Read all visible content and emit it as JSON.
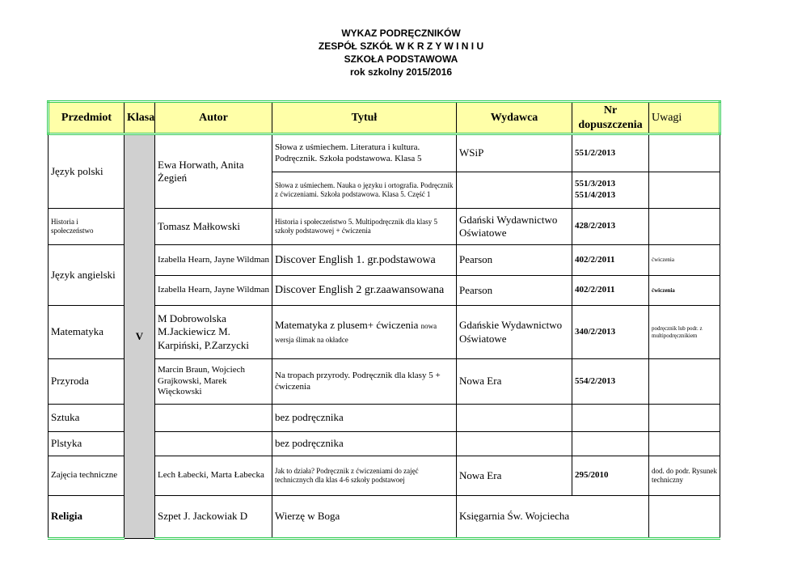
{
  "header": {
    "lines": [
      "WYKAZ PODRĘCZNIKÓW",
      "ZESPÓŁ SZKÓŁ W  K R Z Y W I N I U",
      "SZKOŁA PODSTAWOWA",
      "rok szkolny 2015/2016"
    ]
  },
  "table": {
    "columns": [
      "Przedmiot",
      "Klasa",
      "Autor",
      "Tytuł",
      "Wydawca",
      "Nr dopuszczenia",
      "Uwagi"
    ],
    "klasa": "V",
    "rows": [
      {
        "subject": "Język polski",
        "author": "Ewa Horwath, Anita Żegień",
        "title": "Słowa z uśmiechem. Literatura i kultura. Podręcznik. Szkoła podstawowa. Klasa 5",
        "publisher": "WSiP",
        "number": "551/2/2013"
      },
      {
        "title": "Słowa z uśmiechem. Nauka o języku i ortografia. Podręcznik z ćwiczeniami. Szkoła podstawowa. Klasa 5. Część 1",
        "numbers": [
          "551/3/2013",
          "551/4/2013"
        ]
      },
      {
        "subject": "Historia i społeczeństwo",
        "author": "Tomasz Małkowski",
        "title": "Historia i społeczeństwo 5. Multipodręcznik dla klasy 5 szkoły podstawowej + ćwiczenia",
        "publisher": "Gdański Wydawnictwo Oświatowe",
        "number": "428/2/2013"
      },
      {
        "subject": "Język angielski",
        "author": "Izabella Hearn, Jayne Wildman",
        "title": "Discover English 1. gr.podstawowa",
        "publisher": "Pearson",
        "number": "402/2/2011",
        "notes": "ćwiczenia"
      },
      {
        "author": "Izabella Hearn, Jayne Wildman",
        "title": "Discover English 2 gr.zaawansowana",
        "publisher": "Pearson",
        "number": "402/2/2011",
        "notes": "ćwiczenia"
      },
      {
        "subject": "Matematyka",
        "author": "M Dobrowolska M.Jackiewicz  M. Karpiński, P.Zarzycki",
        "title": "Matematyka z plusem+ ćwiczenia",
        "title_note": "nowa wersja ślimak na okładce",
        "publisher": "Gdańskie Wydawnictwo Oświatowe",
        "number": "340/2/2013",
        "notes": "podręcznik lub podr. z multipodręcznikiem"
      },
      {
        "subject": "Przyroda",
        "author": "Marcin Braun, Wojciech Grajkowski, Marek Więckowski",
        "title": "Na tropach przyrody. Podręcznik dla klasy 5 + ćwiczenia",
        "publisher": "Nowa Era",
        "number": "554/2/2013"
      },
      {
        "subject": "Sztuka",
        "title": "bez podręcznika"
      },
      {
        "subject": "Plstyka",
        "title": "bez podręcznika"
      },
      {
        "subject": "Zajęcia techniczne",
        "author": "Lech Łabecki, Marta Łabecka",
        "title": "Jak to działa? Podręcznik z ćwiczeniami do zajęć technicznych dla klas 4-6 szkoły podstawoej",
        "publisher": "Nowa Era",
        "number": "295/2010",
        "notes": "dod. do podr. Rysunek techniczny"
      },
      {
        "subject": "Religia",
        "author": "Szpet J. Jackowiak D",
        "title": "Wierzę w Boga",
        "publisher": "Księgarnia Św. Wojciecha"
      }
    ]
  }
}
